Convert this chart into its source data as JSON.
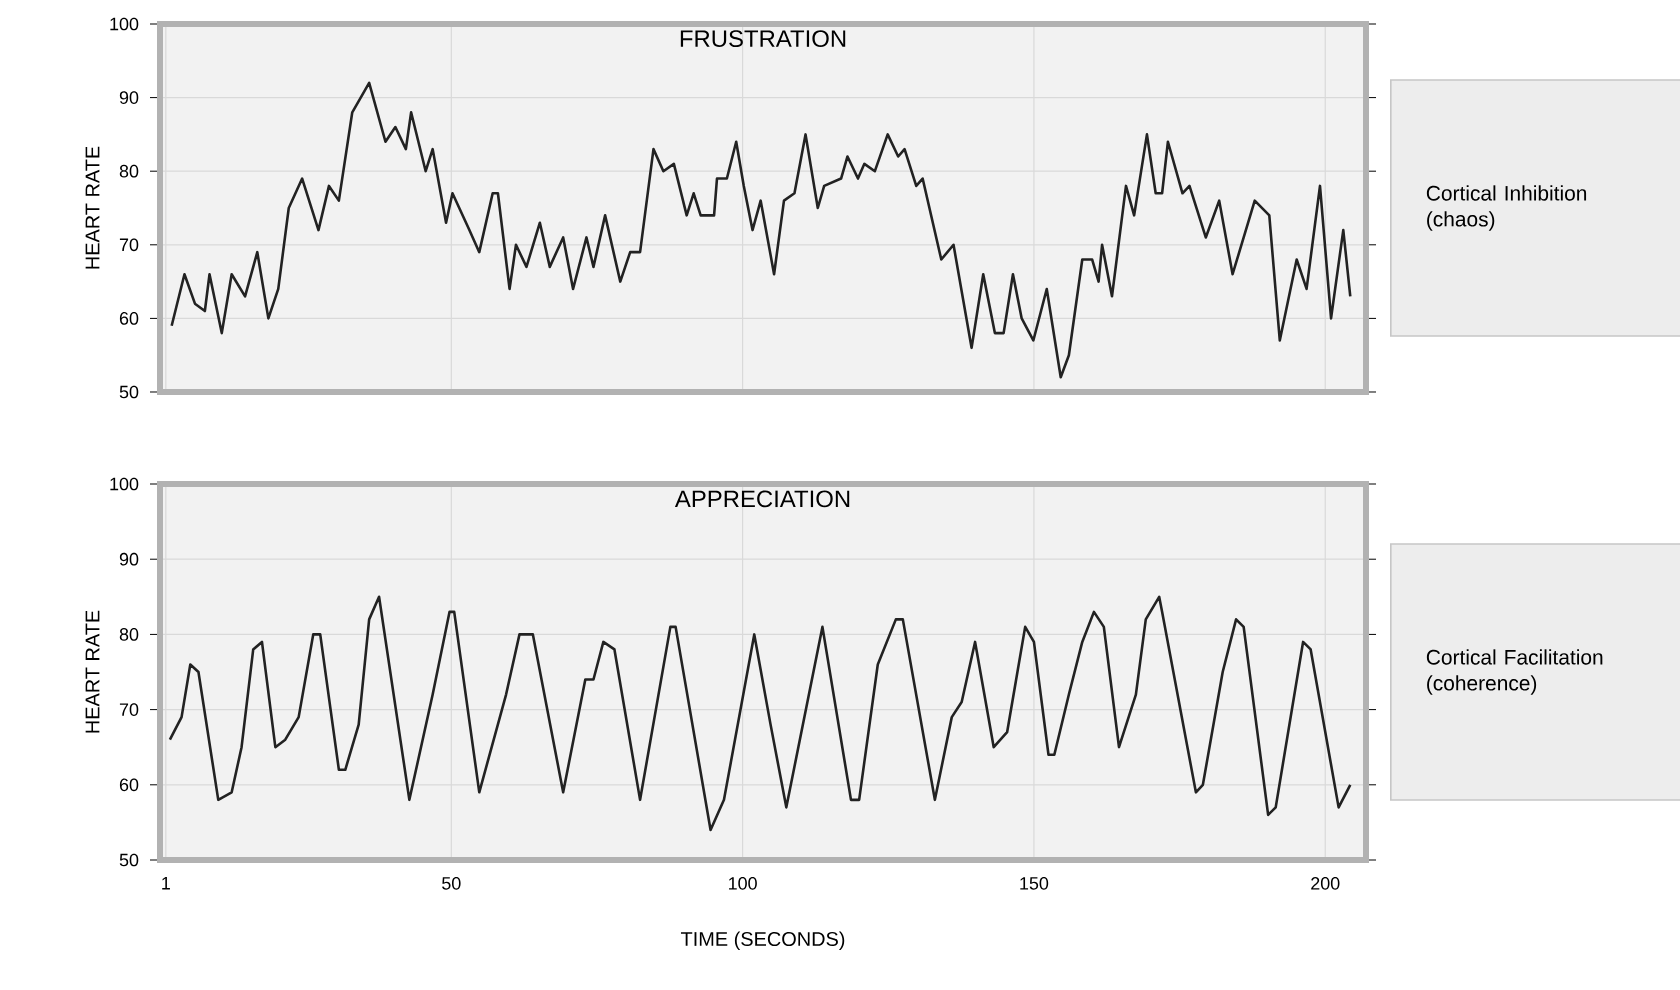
{
  "chart_data": [
    {
      "type": "line",
      "title": "FRUSTRATION",
      "ylabel": "HEART RATE",
      "xlim": [
        0,
        207
      ],
      "ylim": [
        50,
        100
      ],
      "yticks": [
        50,
        60,
        70,
        80,
        90,
        100
      ],
      "xticks": [
        1,
        50,
        100,
        150,
        200
      ],
      "tick_labels": "y",
      "grid": true,
      "color": "#222222",
      "x": [
        2,
        4.2,
        6,
        7.7,
        8.5,
        10.6,
        12.3,
        14.6,
        16.7,
        18.6,
        20.3,
        22.1,
        24.4,
        27.2,
        29,
        30.7,
        33,
        35.9,
        38.7,
        40.4,
        42.2,
        43.1,
        45.6,
        46.8,
        49.1,
        50.2,
        53.1,
        54.8,
        57.1,
        58,
        60,
        61.1,
        62.9,
        65.2,
        66.9,
        69.2,
        70.9,
        73.2,
        74.4,
        76.4,
        79,
        80.7,
        82.4,
        84.7,
        86.4,
        88.2,
        90.4,
        91.6,
        92.8,
        95.1,
        95.6,
        97.3,
        98.9,
        100.2,
        101.7,
        103.1,
        105.4,
        107.1,
        108.9,
        110.8,
        112.9,
        114,
        116.9,
        118,
        119.8,
        120.9,
        122.7,
        124.9,
        126.7,
        127.8,
        129.8,
        130.9,
        134.1,
        136.2,
        139.3,
        141.3,
        143.3,
        144.8,
        146.4,
        147.9,
        149.9,
        152.2,
        154.6,
        156,
        158.3,
        160,
        161.1,
        161.7,
        163.4,
        165.8,
        167.2,
        169.4,
        170.9,
        172,
        173,
        175.5,
        176.7,
        179.5,
        181.8,
        184.1,
        187.9,
        190.4,
        192.2,
        195.1,
        196.8,
        199.1,
        201,
        203.1,
        204.3
      ],
      "values": [
        59,
        66,
        62,
        61,
        66,
        58,
        66,
        63,
        69,
        60,
        64,
        75,
        79,
        72,
        78,
        76,
        88,
        92,
        84,
        86,
        83,
        88,
        80,
        83,
        73,
        77,
        72,
        69,
        77,
        77,
        64,
        70,
        67,
        73,
        67,
        71,
        64,
        71,
        67,
        74,
        65,
        69,
        69,
        83,
        80,
        81,
        74,
        77,
        74,
        74,
        79,
        79,
        84,
        78,
        72,
        76,
        66,
        76,
        77,
        85,
        75,
        78,
        79,
        82,
        79,
        81,
        80,
        85,
        82,
        83,
        78,
        79,
        68,
        70,
        56,
        66,
        58,
        58,
        66,
        60,
        57,
        64,
        52,
        55,
        68,
        68,
        65,
        70,
        63,
        78,
        74,
        85,
        77,
        77,
        84,
        77,
        78,
        71,
        76,
        66,
        76,
        74,
        57,
        68,
        64,
        78,
        60,
        72,
        63
      ],
      "annotations": [
        "Cortical Inhibition (chaos)"
      ]
    },
    {
      "type": "line",
      "title": "APPRECIATION",
      "ylabel": "HEART RATE",
      "xlabel": "TIME (SECONDS)",
      "xlim": [
        0,
        207
      ],
      "ylim": [
        50,
        100
      ],
      "yticks": [
        50,
        60,
        70,
        80,
        90,
        100
      ],
      "xticks": [
        1,
        50,
        100,
        150,
        200
      ],
      "grid": true,
      "color": "#222222",
      "x": [
        1.7,
        3.7,
        5.2,
        6.6,
        10,
        12.3,
        14,
        16,
        17.5,
        19.8,
        21.5,
        23.8,
        26.3,
        27.5,
        30.7,
        31.8,
        34.1,
        35.9,
        37.6,
        42.8,
        46.8,
        49.7,
        50.5,
        54.8,
        59.4,
        61.7,
        64,
        69.2,
        73,
        74.4,
        76.1,
        78,
        82.4,
        87.6,
        88.5,
        94.5,
        96.8,
        102,
        104.8,
        107.5,
        113.7,
        118.6,
        120,
        123.2,
        126.3,
        127.5,
        133,
        135.9,
        137.6,
        139.9,
        143.1,
        145.4,
        148.5,
        150,
        152.5,
        153.5,
        156,
        158.3,
        160.3,
        162,
        164.6,
        167.5,
        169.2,
        171.5,
        172,
        177.8,
        179,
        182.4,
        184.7,
        186,
        190.2,
        191.5,
        196.2,
        197.5,
        202.3,
        204.3
      ],
      "values": [
        66,
        69,
        76,
        75,
        58,
        59,
        65,
        78,
        79,
        65,
        66,
        69,
        80,
        80,
        62,
        62,
        68,
        82,
        85,
        58,
        72,
        83,
        83,
        59,
        72,
        80,
        80,
        59,
        74,
        74,
        79,
        78,
        58,
        81,
        81,
        54,
        58,
        80,
        68,
        57,
        81,
        58,
        58,
        76,
        82,
        82,
        58,
        69,
        71,
        79,
        65,
        67,
        81,
        79,
        64,
        64,
        72,
        79,
        83,
        81,
        65,
        72,
        82,
        85,
        83,
        59,
        60,
        75,
        82,
        81,
        56,
        57,
        79,
        78,
        57,
        60
      ],
      "annotations": [
        "Cortical Facilitation (coherence)"
      ]
    }
  ]
}
